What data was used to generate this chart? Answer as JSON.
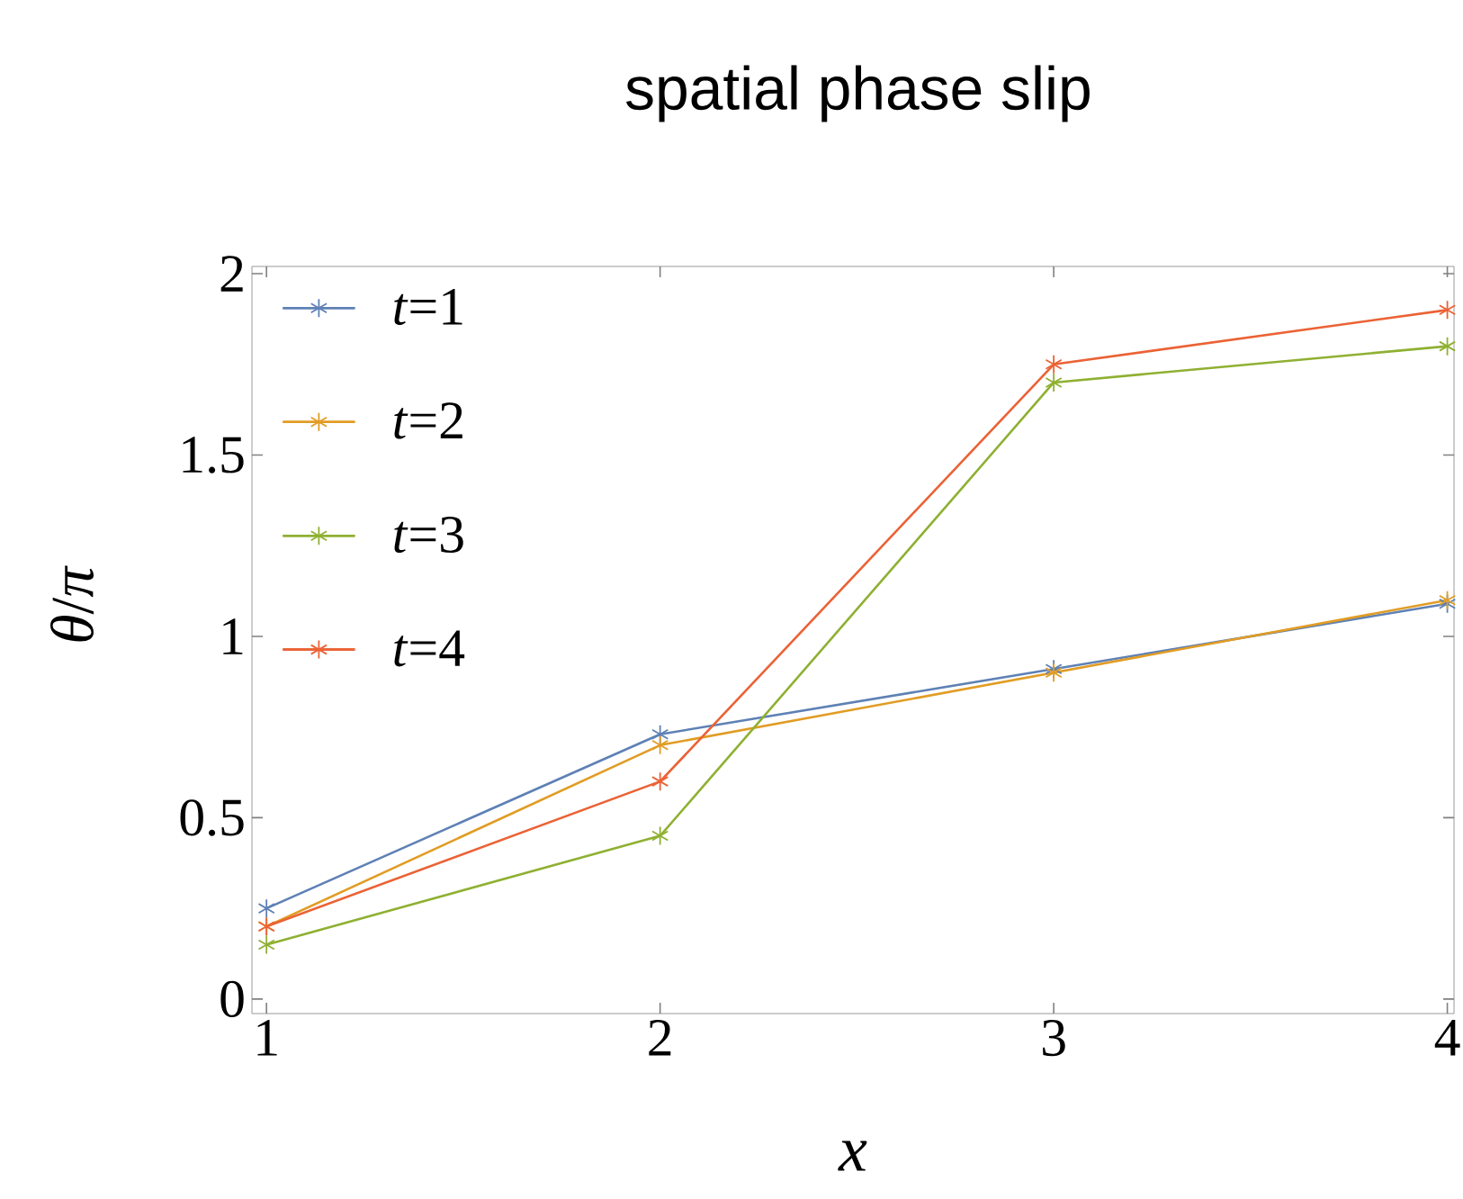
{
  "chart_data": {
    "type": "line",
    "title": "spatial phase slip",
    "xlabel": "x",
    "ylabel": "*θ*/*π*",
    "x": [
      1,
      2,
      3,
      4
    ],
    "series": [
      {
        "name": "*t*=1",
        "color": "#5e81b5",
        "values": [
          0.25,
          0.73,
          0.91,
          1.09
        ]
      },
      {
        "name": "*t*=2",
        "color": "#e19c24",
        "values": [
          0.2,
          0.7,
          0.9,
          1.1
        ]
      },
      {
        "name": "*t*=3",
        "color": "#8fb032",
        "values": [
          0.15,
          0.45,
          1.7,
          1.8
        ]
      },
      {
        "name": "*t*=4",
        "color": "#eb6235",
        "values": [
          0.2,
          0.6,
          1.75,
          1.9
        ]
      }
    ],
    "xlim": [
      0.963,
      4.017
    ],
    "ylim": [
      -0.04,
      2.02
    ],
    "xticks": [
      1,
      2,
      3,
      4
    ],
    "yticks": [
      0,
      0.5,
      1,
      1.5,
      2
    ],
    "grid": false,
    "legend": "top left",
    "marker": "cross",
    "line_style": "solid"
  }
}
